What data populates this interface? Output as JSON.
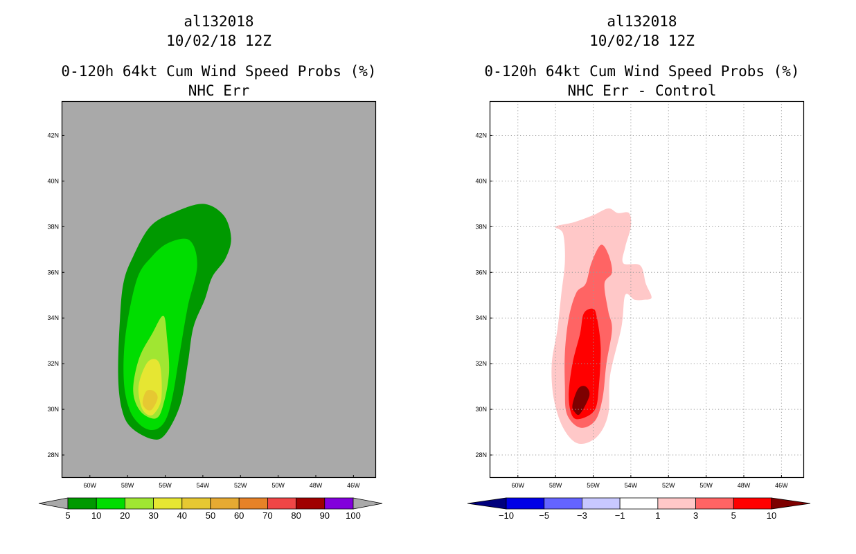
{
  "chart_data": [
    {
      "type": "contour_map",
      "storm_id": "al132018",
      "datetime": "10/02/18 12Z",
      "title": "0-120h 64kt Cum Wind Speed Probs (%)",
      "subtitle": "NHC Err",
      "background": "#a9a9a9",
      "gridlines": false,
      "lon_range": [
        -61.5,
        -44.8
      ],
      "lat_range": [
        27.0,
        43.5
      ],
      "lon_ticks": [
        "60W",
        "58W",
        "56W",
        "54W",
        "52W",
        "50W",
        "48W",
        "46W"
      ],
      "lat_ticks": [
        "28N",
        "30N",
        "32N",
        "34N",
        "36N",
        "38N",
        "40N",
        "42N"
      ],
      "colorbar": {
        "labels": [
          "5",
          "10",
          "20",
          "30",
          "40",
          "50",
          "60",
          "70",
          "80",
          "90",
          "100"
        ],
        "colors": [
          "#009900",
          "#00dd00",
          "#a0e632",
          "#e6e632",
          "#e6c832",
          "#e6aa32",
          "#e68228",
          "#f04646",
          "#a00000",
          "#8200dc"
        ],
        "under_color": "#a9a9a9",
        "over_color": "#a9a9a9"
      },
      "contours": [
        {
          "level": 5,
          "color": "#009900",
          "points": [
            [
              -56.7,
              28.7
            ],
            [
              -56.0,
              28.9
            ],
            [
              -55.2,
              30.2
            ],
            [
              -54.8,
              32.0
            ],
            [
              -54.5,
              33.6
            ],
            [
              -53.9,
              34.8
            ],
            [
              -53.5,
              35.8
            ],
            [
              -52.8,
              36.6
            ],
            [
              -52.5,
              37.5
            ],
            [
              -52.9,
              38.5
            ],
            [
              -54.0,
              39.0
            ],
            [
              -55.6,
              38.6
            ],
            [
              -56.8,
              38.0
            ],
            [
              -57.7,
              36.7
            ],
            [
              -58.2,
              35.6
            ],
            [
              -58.4,
              34.0
            ],
            [
              -58.5,
              31.5
            ],
            [
              -58.3,
              30.0
            ],
            [
              -57.8,
              29.2
            ]
          ]
        },
        {
          "level": 10,
          "color": "#00dd00",
          "points": [
            [
              -56.6,
              29.1
            ],
            [
              -56.0,
              29.5
            ],
            [
              -55.6,
              30.6
            ],
            [
              -55.2,
              32.6
            ],
            [
              -54.8,
              34.5
            ],
            [
              -54.3,
              36.3
            ],
            [
              -54.7,
              37.4
            ],
            [
              -55.8,
              37.3
            ],
            [
              -56.7,
              36.7
            ],
            [
              -57.5,
              35.7
            ],
            [
              -58.1,
              33.3
            ],
            [
              -58.2,
              31.3
            ],
            [
              -57.9,
              30.0
            ],
            [
              -57.3,
              29.3
            ]
          ]
        },
        {
          "level": 20,
          "color": "#a0e632",
          "points": [
            [
              -56.5,
              29.6
            ],
            [
              -56.1,
              30.2
            ],
            [
              -55.8,
              31.6
            ],
            [
              -55.9,
              33.1
            ],
            [
              -56.1,
              34.1
            ],
            [
              -56.7,
              33.3
            ],
            [
              -57.4,
              32.2
            ],
            [
              -57.7,
              30.8
            ],
            [
              -57.3,
              29.9
            ]
          ]
        },
        {
          "level": 30,
          "color": "#e6e632",
          "points": [
            [
              -56.6,
              29.8
            ],
            [
              -56.2,
              30.5
            ],
            [
              -56.3,
              32.0
            ],
            [
              -56.9,
              32.1
            ],
            [
              -57.4,
              31.1
            ],
            [
              -57.3,
              30.2
            ],
            [
              -57.0,
              29.8
            ]
          ]
        },
        {
          "level": 40,
          "color": "#e6c832",
          "points": [
            [
              -56.7,
              30.0
            ],
            [
              -56.4,
              30.5
            ],
            [
              -56.6,
              30.8
            ],
            [
              -57.0,
              30.8
            ],
            [
              -57.2,
              30.3
            ],
            [
              -57.0,
              30.0
            ]
          ]
        }
      ]
    },
    {
      "type": "contour_map",
      "storm_id": "al132018",
      "datetime": "10/02/18 12Z",
      "title": "0-120h 64kt Cum Wind Speed Probs (%)",
      "subtitle": "NHC Err - Control",
      "background": "#ffffff",
      "gridlines": true,
      "lon_range": [
        -61.5,
        -44.8
      ],
      "lat_range": [
        27.0,
        43.5
      ],
      "lon_ticks": [
        "60W",
        "58W",
        "56W",
        "54W",
        "52W",
        "50W",
        "48W",
        "46W"
      ],
      "lat_ticks": [
        "28N",
        "30N",
        "32N",
        "34N",
        "36N",
        "38N",
        "40N",
        "42N"
      ],
      "colorbar": {
        "labels": [
          "-10",
          "-5",
          "-3",
          "-1",
          "1",
          "3",
          "5",
          "10"
        ],
        "colors": [
          "#0000e6",
          "#6464ff",
          "#c8c8ff",
          "#ffffff",
          "#ffc8c8",
          "#ff6464",
          "#ff0000"
        ],
        "under_color": "#00007d",
        "over_color": "#7d0000"
      },
      "contours": [
        {
          "level": 1,
          "color": "#ffc8c8",
          "points": [
            [
              -56.8,
              28.5
            ],
            [
              -55.8,
              28.8
            ],
            [
              -55.2,
              29.8
            ],
            [
              -55.1,
              31.5
            ],
            [
              -54.5,
              33.6
            ],
            [
              -54.3,
              35.0
            ],
            [
              -53.8,
              34.8
            ],
            [
              -53.3,
              34.8
            ],
            [
              -52.9,
              34.9
            ],
            [
              -53.2,
              35.5
            ],
            [
              -53.5,
              36.3
            ],
            [
              -54.4,
              36.4
            ],
            [
              -54.3,
              37.1
            ],
            [
              -54.0,
              38.0
            ],
            [
              -54.1,
              38.6
            ],
            [
              -54.7,
              38.6
            ],
            [
              -55.2,
              38.8
            ],
            [
              -56.0,
              38.5
            ],
            [
              -57.0,
              38.2
            ],
            [
              -58.0,
              38.0
            ],
            [
              -57.6,
              37.7
            ],
            [
              -57.5,
              36.5
            ],
            [
              -57.7,
              35.0
            ],
            [
              -57.9,
              33.5
            ],
            [
              -58.2,
              32.0
            ],
            [
              -58.1,
              30.5
            ],
            [
              -57.6,
              29.2
            ]
          ]
        },
        {
          "level": 3,
          "color": "#ff6464",
          "points": [
            [
              -56.7,
              29.2
            ],
            [
              -55.9,
              29.5
            ],
            [
              -55.5,
              30.5
            ],
            [
              -55.3,
              32.0
            ],
            [
              -55.0,
              33.5
            ],
            [
              -55.2,
              34.3
            ],
            [
              -55.4,
              35.5
            ],
            [
              -55.0,
              36.0
            ],
            [
              -55.2,
              36.8
            ],
            [
              -55.6,
              37.2
            ],
            [
              -56.1,
              36.4
            ],
            [
              -56.4,
              35.5
            ],
            [
              -56.9,
              35.1
            ],
            [
              -57.3,
              34.0
            ],
            [
              -57.5,
              32.5
            ],
            [
              -57.5,
              31.0
            ],
            [
              -57.4,
              29.8
            ]
          ]
        },
        {
          "level": 5,
          "color": "#ff0000",
          "points": [
            [
              -56.6,
              29.6
            ],
            [
              -55.9,
              30.0
            ],
            [
              -55.7,
              31.0
            ],
            [
              -55.6,
              32.7
            ],
            [
              -55.8,
              34.0
            ],
            [
              -56.0,
              34.4
            ],
            [
              -56.5,
              34.2
            ],
            [
              -56.7,
              33.3
            ],
            [
              -57.1,
              32.0
            ],
            [
              -57.3,
              30.6
            ],
            [
              -57.1,
              29.7
            ]
          ]
        },
        {
          "level": 10,
          "color": "#7d0000",
          "points": [
            [
              -56.7,
              29.8
            ],
            [
              -56.2,
              30.6
            ],
            [
              -56.4,
              31.0
            ],
            [
              -56.8,
              30.9
            ],
            [
              -57.1,
              30.2
            ],
            [
              -57.0,
              29.9
            ]
          ]
        }
      ]
    }
  ]
}
